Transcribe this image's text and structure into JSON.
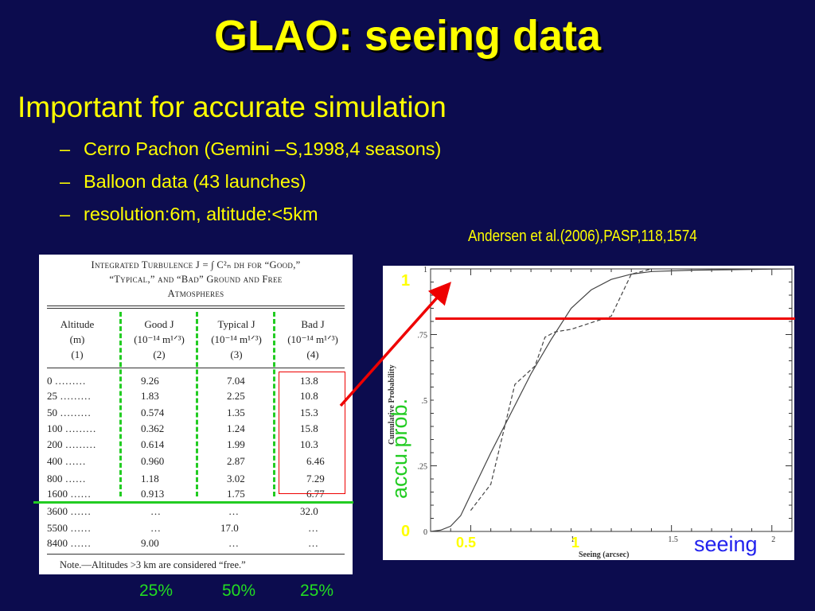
{
  "slide": {
    "title": "GLAO: seeing data",
    "bullet": "Important for accurate simulation",
    "sub_bullets": [
      "Cerro Pachon (Gemini –S,1998,4 seasons)",
      "Balloon data (43 launches)",
      "resolution:6m, altitude:<5km"
    ],
    "dash": "–",
    "citation": "Andersen et al.(2006),PASP,118,1574"
  },
  "table": {
    "caption_1": "Integrated Turbulence J = ∫ C²ₙ dh for “Good,”",
    "caption_2": "“Typical,” and “Bad” Ground and Free",
    "caption_3": "Atmospheres",
    "headers": [
      [
        "Altitude",
        "(m)",
        "(1)"
      ],
      [
        "Good J",
        "(10⁻¹⁴ m¹ᐟ³)",
        "(2)"
      ],
      [
        "Typical J",
        "(10⁻¹⁴ m¹ᐟ³)",
        "(3)"
      ],
      [
        "Bad J",
        "(10⁻¹⁴ m¹ᐟ³)",
        "(4)"
      ]
    ],
    "rows": [
      [
        "0 ………",
        "9.26",
        "7.04",
        "13.8"
      ],
      [
        "25 ………",
        "1.83",
        "2.25",
        "10.8"
      ],
      [
        "50 ………",
        "0.574",
        "1.35",
        "15.3"
      ],
      [
        "100 ………",
        "0.362",
        "1.24",
        "15.8"
      ],
      [
        "200 ………",
        "0.614",
        "1.99",
        "10.3"
      ],
      [
        "400 ……",
        "0.960",
        "2.87",
        "6.46"
      ],
      [
        "800 ……",
        "1.18",
        "3.02",
        "7.29"
      ],
      [
        "1600 ……",
        "0.913",
        "1.75",
        "6.77"
      ],
      [
        "3600 ……",
        "…",
        "…",
        "32.0"
      ],
      [
        "5500 ……",
        "…",
        "17.0",
        "…"
      ],
      [
        "8400 ……",
        "9.00",
        "…",
        "…"
      ]
    ],
    "note": "Note.—Altitudes >3 km are considered “free.”",
    "percentages": [
      "25%",
      "50%",
      "25%"
    ]
  },
  "overlay_colors": {
    "title": "#ffff00",
    "green": "#22cc22",
    "red": "#ee0000",
    "background": "#0c0c4e",
    "seeing_label": "#2222ee"
  },
  "chart_data": {
    "type": "line",
    "xlabel": "Seeing (arcsec)",
    "ylabel": "Cumulative Probability",
    "xlim": [
      0.3,
      2.1
    ],
    "ylim": [
      0,
      1
    ],
    "x_ticks": [
      "1",
      "1.5",
      "2"
    ],
    "y_ticks": [
      "0",
      ".25",
      ".5",
      ".75",
      "1"
    ],
    "overlay_y_labels": [
      "1",
      "0"
    ],
    "overlay_x_labels": [
      "0.5",
      "1"
    ],
    "overlay_axis_label": "accu.prob.",
    "overlay_seeing_label": "seeing",
    "red_line_y": 0.82,
    "series": [
      {
        "style": "solid",
        "x": [
          0.3,
          0.35,
          0.4,
          0.45,
          0.5,
          0.6,
          0.7,
          0.8,
          0.9,
          1.0,
          1.1,
          1.2,
          1.3,
          1.4,
          1.6,
          1.8,
          2.0,
          2.1
        ],
        "y": [
          0.0,
          0.005,
          0.02,
          0.06,
          0.14,
          0.3,
          0.45,
          0.6,
          0.73,
          0.85,
          0.92,
          0.96,
          0.98,
          0.99,
          0.995,
          0.997,
          0.999,
          1.0
        ]
      },
      {
        "style": "dashed",
        "x": [
          0.5,
          0.6,
          0.72,
          0.82,
          0.87,
          0.92,
          1.0,
          1.2,
          1.3,
          1.4
        ],
        "y": [
          0.08,
          0.18,
          0.56,
          0.63,
          0.74,
          0.76,
          0.77,
          0.82,
          0.98,
          1.0
        ]
      }
    ]
  }
}
